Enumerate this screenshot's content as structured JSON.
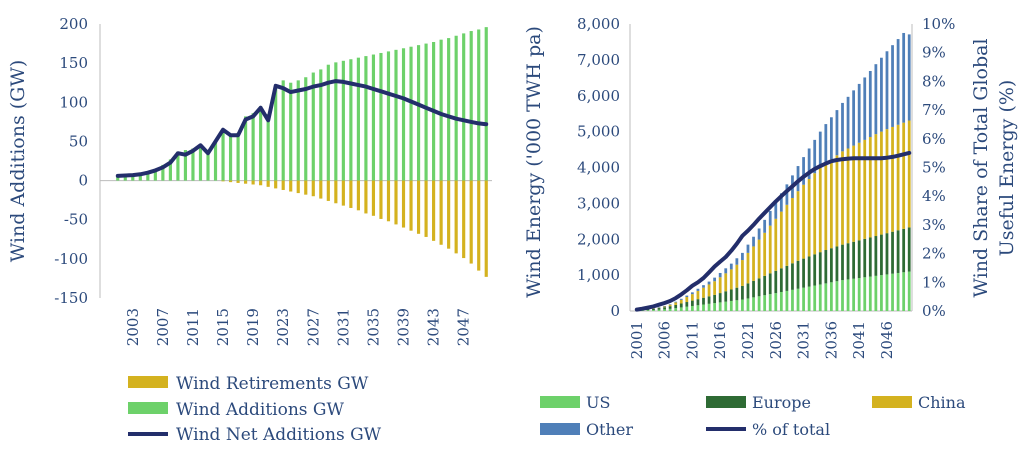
{
  "chart_data": [
    {
      "type": "bar",
      "ylabel": "Wind Additions (GW)",
      "ylim": [
        -150,
        200
      ],
      "yticks": [
        -150,
        -100,
        -50,
        0,
        50,
        100,
        150,
        200
      ],
      "x_tick_labels": [
        "2003",
        "2007",
        "2011",
        "2015",
        "2019",
        "2023",
        "2027",
        "2031",
        "2035",
        "2039",
        "2043",
        "2047"
      ],
      "x": [
        2001,
        2002,
        2003,
        2004,
        2005,
        2006,
        2007,
        2008,
        2009,
        2010,
        2011,
        2012,
        2013,
        2014,
        2015,
        2016,
        2017,
        2018,
        2019,
        2020,
        2021,
        2022,
        2023,
        2024,
        2025,
        2026,
        2027,
        2028,
        2029,
        2030,
        2031,
        2032,
        2033,
        2034,
        2035,
        2036,
        2037,
        2038,
        2039,
        2040,
        2041,
        2042,
        2043,
        2044,
        2045,
        2046,
        2047,
        2048,
        2049,
        2050
      ],
      "colors": {
        "retirements": "#d4b21f",
        "additions": "#6dd16a",
        "net": "#232e6b"
      },
      "series": [
        {
          "name": "Wind Retirements GW",
          "type": "bar",
          "values": [
            0,
            0,
            0,
            0,
            0,
            0,
            0,
            0,
            0,
            0,
            0,
            0,
            0,
            0,
            -1,
            -2,
            -3,
            -4,
            -5,
            -6,
            -8,
            -10,
            -12,
            -14,
            -16,
            -18,
            -20,
            -23,
            -26,
            -29,
            -32,
            -35,
            -38,
            -42,
            -45,
            -49,
            -52,
            -56,
            -60,
            -64,
            -68,
            -72,
            -77,
            -82,
            -87,
            -93,
            -99,
            -106,
            -115,
            -123
          ]
        },
        {
          "name": "Wind Additions GW",
          "type": "bar",
          "values": [
            6,
            7,
            8,
            9,
            11,
            15,
            20,
            27,
            37,
            39,
            41,
            45,
            36,
            50,
            65,
            58,
            61,
            82,
            86,
            95,
            85,
            118,
            128,
            125,
            128,
            132,
            138,
            142,
            148,
            151,
            153,
            155,
            157,
            159,
            161,
            163,
            165,
            167,
            169,
            171,
            173,
            175,
            177,
            180,
            182,
            185,
            188,
            191,
            193,
            196
          ]
        },
        {
          "name": "Wind Net Additions GW",
          "type": "line",
          "values": [
            6,
            6.5,
            7,
            8,
            10,
            13,
            17,
            23,
            35,
            33,
            38,
            45,
            35,
            50,
            65,
            58,
            58,
            78,
            82,
            93,
            77,
            121,
            118,
            113,
            115,
            117,
            120,
            122,
            125,
            127,
            126,
            124,
            122,
            120,
            117,
            114,
            111,
            108,
            105,
            101,
            97,
            93,
            89,
            85,
            82,
            79,
            77,
            75,
            73,
            72
          ]
        }
      ]
    },
    {
      "type": "bar",
      "ylabel": "Wind Energy ('000 TWH pa)",
      "y2label_lines": [
        "Wind Share of Total Global",
        "Useful Energy (%)"
      ],
      "ylim": [
        0,
        8000
      ],
      "y2lim": [
        0,
        10
      ],
      "yticks": [
        "0",
        "1,000",
        "2,000",
        "3,000",
        "4,000",
        "5,000",
        "6,000",
        "7,000",
        "8,000"
      ],
      "y2ticks": [
        "0%",
        "1%",
        "2%",
        "3%",
        "4%",
        "5%",
        "6%",
        "7%",
        "8%",
        "9%",
        "10%"
      ],
      "x_tick_labels": [
        "2001",
        "2006",
        "2011",
        "2016",
        "2021",
        "2026",
        "2031",
        "2036",
        "2041",
        "2046"
      ],
      "x": [
        2001,
        2002,
        2003,
        2004,
        2005,
        2006,
        2007,
        2008,
        2009,
        2010,
        2011,
        2012,
        2013,
        2014,
        2015,
        2016,
        2017,
        2018,
        2019,
        2020,
        2021,
        2022,
        2023,
        2024,
        2025,
        2026,
        2027,
        2028,
        2029,
        2030,
        2031,
        2032,
        2033,
        2034,
        2035,
        2036,
        2037,
        2038,
        2039,
        2040,
        2041,
        2042,
        2043,
        2044,
        2045,
        2046,
        2047,
        2048,
        2049,
        2050
      ],
      "colors": {
        "us": "#6dd16a",
        "europe": "#2e6b34",
        "china": "#d4b21f",
        "other": "#4f7fb8",
        "pct": "#232e6b"
      },
      "series": [
        {
          "name": "US",
          "type": "bar",
          "values": [
            10,
            15,
            20,
            25,
            35,
            45,
            60,
            80,
            100,
            120,
            140,
            160,
            180,
            200,
            220,
            240,
            260,
            280,
            300,
            320,
            350,
            380,
            410,
            440,
            470,
            500,
            530,
            560,
            590,
            620,
            650,
            680,
            710,
            740,
            770,
            800,
            830,
            860,
            880,
            900,
            920,
            940,
            960,
            980,
            1000,
            1020,
            1040,
            1060,
            1080,
            1100
          ]
        },
        {
          "name": "Europe",
          "type": "bar",
          "values": [
            20,
            25,
            30,
            40,
            50,
            60,
            75,
            90,
            110,
            130,
            150,
            170,
            190,
            210,
            230,
            260,
            290,
            320,
            350,
            380,
            420,
            460,
            500,
            540,
            580,
            620,
            660,
            700,
            740,
            780,
            810,
            840,
            870,
            900,
            930,
            950,
            970,
            990,
            1010,
            1030,
            1050,
            1070,
            1090,
            1110,
            1130,
            1150,
            1170,
            1190,
            1210,
            1230
          ]
        },
        {
          "name": "China",
          "type": "bar",
          "values": [
            0,
            0,
            0,
            5,
            10,
            20,
            40,
            70,
            100,
            140,
            180,
            230,
            280,
            330,
            380,
            440,
            500,
            560,
            640,
            720,
            850,
            960,
            1080,
            1200,
            1330,
            1450,
            1580,
            1700,
            1820,
            1940,
            2060,
            2160,
            2260,
            2350,
            2420,
            2480,
            2540,
            2600,
            2640,
            2680,
            2720,
            2760,
            2800,
            2840,
            2870,
            2900,
            2920,
            2940,
            2960,
            2980
          ]
        },
        {
          "name": "Other",
          "type": "bar",
          "values": [
            0,
            0,
            5,
            10,
            10,
            15,
            15,
            20,
            30,
            40,
            50,
            60,
            70,
            80,
            100,
            120,
            140,
            160,
            180,
            200,
            230,
            270,
            310,
            360,
            410,
            460,
            510,
            570,
            630,
            700,
            770,
            850,
            930,
            1010,
            1090,
            1170,
            1260,
            1350,
            1440,
            1540,
            1640,
            1740,
            1840,
            1950,
            2060,
            2170,
            2280,
            2390,
            2500,
            2400
          ]
        },
        {
          "name": "% of total",
          "type": "line",
          "axis": "right",
          "values": [
            0.05,
            0.08,
            0.12,
            0.16,
            0.22,
            0.28,
            0.35,
            0.45,
            0.58,
            0.72,
            0.88,
            1.0,
            1.15,
            1.35,
            1.55,
            1.72,
            1.88,
            2.1,
            2.35,
            2.62,
            2.8,
            3.0,
            3.22,
            3.42,
            3.62,
            3.82,
            4.0,
            4.18,
            4.35,
            4.52,
            4.68,
            4.82,
            4.95,
            5.05,
            5.14,
            5.22,
            5.26,
            5.29,
            5.31,
            5.32,
            5.32,
            5.32,
            5.32,
            5.32,
            5.32,
            5.34,
            5.37,
            5.41,
            5.46,
            5.51
          ]
        }
      ],
      "legend_columns": 3
    }
  ]
}
